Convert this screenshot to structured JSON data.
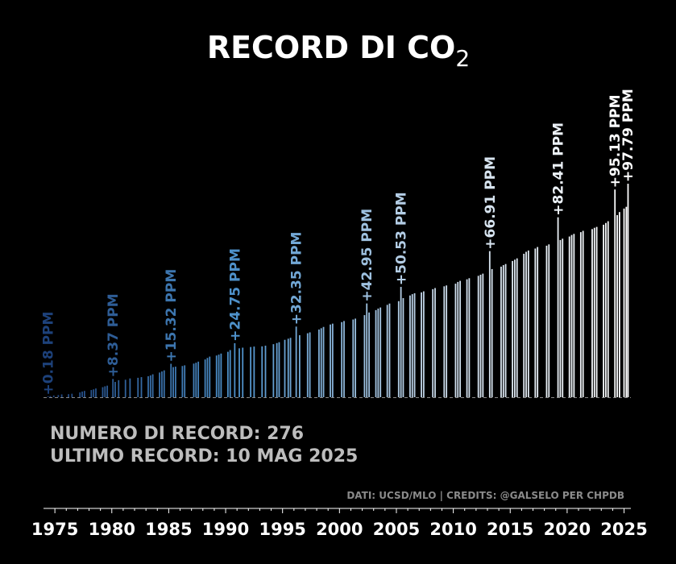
{
  "chart_data": {
    "type": "bar",
    "title": "RECORD DI CO",
    "title_subscript": "2",
    "xlabel": "",
    "ylabel": "",
    "x_ticks": [
      "1975",
      "1980",
      "1985",
      "1990",
      "1995",
      "2000",
      "2005",
      "2010",
      "2015",
      "2020",
      "2025"
    ],
    "xlim": [
      1974,
      2025.6
    ],
    "ylim": [
      0,
      100
    ],
    "baseline_style": "dashed",
    "grid": false,
    "stats": {
      "count_line": "NUMERO DI RECORD: 276",
      "last_record_line": "ULTIMO RECORD: 10 MAG 2025"
    },
    "credits": "DATI: UCSD/MLO | CREDITS: @GALSELO PER CHPDB",
    "colors": {
      "background": "#000000",
      "early": "#1c3f78",
      "mid": "#4f93cc",
      "late": "#c8d9ea",
      "latest": "#ffffff",
      "stats_text": "#bdbdbd",
      "credits_text": "#8a8a8a"
    },
    "annotations": [
      {
        "x": 1974.4,
        "y": 0.18,
        "label": "+0.18 PPM"
      },
      {
        "x": 1980.1,
        "y": 8.37,
        "label": "+8.37 PPM"
      },
      {
        "x": 1985.2,
        "y": 15.32,
        "label": "+15.32 PPM"
      },
      {
        "x": 1990.8,
        "y": 24.75,
        "label": "+24.75 PPM"
      },
      {
        "x": 1996.2,
        "y": 32.35,
        "label": "+32.35 PPM"
      },
      {
        "x": 2002.4,
        "y": 42.95,
        "label": "+42.95 PPM"
      },
      {
        "x": 2005.4,
        "y": 50.53,
        "label": "+50.53 PPM"
      },
      {
        "x": 2013.2,
        "y": 66.91,
        "label": "+66.91 PPM"
      },
      {
        "x": 2019.2,
        "y": 82.41,
        "label": "+82.41 PPM"
      },
      {
        "x": 2024.2,
        "y": 95.13,
        "label": "+95.13 PPM"
      },
      {
        "x": 2025.3,
        "y": 97.79,
        "label": "+97.79 PPM"
      }
    ],
    "records": [
      [
        1974.4,
        0.18
      ],
      [
        1974.6,
        0.5
      ],
      [
        1974.9,
        0.8
      ],
      [
        1975.3,
        1.0
      ],
      [
        1975.6,
        1.3
      ],
      [
        1976.2,
        1.4
      ],
      [
        1976.5,
        1.6
      ],
      [
        1977.2,
        2.2
      ],
      [
        1977.4,
        2.6
      ],
      [
        1977.6,
        2.9
      ],
      [
        1978.2,
        3.3
      ],
      [
        1978.4,
        3.6
      ],
      [
        1978.6,
        4.0
      ],
      [
        1979.2,
        4.6
      ],
      [
        1979.4,
        5.0
      ],
      [
        1979.6,
        5.3
      ],
      [
        1980.1,
        8.37
      ],
      [
        1980.3,
        7.0
      ],
      [
        1980.6,
        7.8
      ],
      [
        1981.2,
        8.0
      ],
      [
        1981.6,
        8.6
      ],
      [
        1982.3,
        8.9
      ],
      [
        1982.6,
        9.2
      ],
      [
        1983.2,
        9.6
      ],
      [
        1983.4,
        10.0
      ],
      [
        1983.6,
        10.5
      ],
      [
        1984.2,
        11.3
      ],
      [
        1984.4,
        11.8
      ],
      [
        1984.6,
        12.3
      ],
      [
        1985.2,
        15.32
      ],
      [
        1985.4,
        13.8
      ],
      [
        1985.6,
        14.0
      ],
      [
        1986.2,
        14.3
      ],
      [
        1986.4,
        14.6
      ],
      [
        1987.2,
        15.4
      ],
      [
        1987.4,
        15.8
      ],
      [
        1987.6,
        16.3
      ],
      [
        1988.2,
        17.3
      ],
      [
        1988.4,
        18.0
      ],
      [
        1988.6,
        18.6
      ],
      [
        1989.2,
        19.1
      ],
      [
        1989.4,
        19.5
      ],
      [
        1989.6,
        20.0
      ],
      [
        1990.2,
        20.8
      ],
      [
        1990.4,
        21.6
      ],
      [
        1990.8,
        24.75
      ],
      [
        1991.2,
        22.4
      ],
      [
        1991.5,
        22.7
      ],
      [
        1992.2,
        23.0
      ],
      [
        1992.5,
        23.2
      ],
      [
        1993.2,
        23.3
      ],
      [
        1993.5,
        23.6
      ],
      [
        1994.2,
        24.3
      ],
      [
        1994.5,
        24.8
      ],
      [
        1994.7,
        25.2
      ],
      [
        1995.2,
        26.3
      ],
      [
        1995.5,
        26.8
      ],
      [
        1995.7,
        27.2
      ],
      [
        1996.2,
        32.35
      ],
      [
        1996.5,
        28.4
      ],
      [
        1997.2,
        29.3
      ],
      [
        1997.4,
        29.7
      ],
      [
        1998.2,
        31.0
      ],
      [
        1998.4,
        31.6
      ],
      [
        1998.6,
        32.2
      ],
      [
        1999.2,
        33.3
      ],
      [
        1999.4,
        33.7
      ],
      [
        2000.2,
        34.4
      ],
      [
        2000.4,
        34.9
      ],
      [
        2001.2,
        35.6
      ],
      [
        2001.4,
        36.0
      ],
      [
        2002.2,
        37.6
      ],
      [
        2002.4,
        42.95
      ],
      [
        2002.6,
        38.8
      ],
      [
        2003.2,
        39.9
      ],
      [
        2003.4,
        40.6
      ],
      [
        2003.6,
        41.1
      ],
      [
        2004.2,
        42.3
      ],
      [
        2004.4,
        42.9
      ],
      [
        2005.2,
        44.0
      ],
      [
        2005.4,
        50.53
      ],
      [
        2005.6,
        45.4
      ],
      [
        2006.2,
        46.6
      ],
      [
        2006.4,
        47.2
      ],
      [
        2006.6,
        47.6
      ],
      [
        2007.2,
        48.0
      ],
      [
        2007.4,
        48.5
      ],
      [
        2008.2,
        49.5
      ],
      [
        2008.4,
        50.0
      ],
      [
        2009.2,
        50.8
      ],
      [
        2009.4,
        51.2
      ],
      [
        2010.2,
        52.0
      ],
      [
        2010.4,
        52.8
      ],
      [
        2010.6,
        53.3
      ],
      [
        2011.2,
        54.0
      ],
      [
        2011.4,
        54.5
      ],
      [
        2012.2,
        55.6
      ],
      [
        2012.4,
        56.1
      ],
      [
        2012.6,
        56.6
      ],
      [
        2013.2,
        66.91
      ],
      [
        2013.4,
        58.7
      ],
      [
        2014.2,
        59.8
      ],
      [
        2014.4,
        60.5
      ],
      [
        2014.6,
        61.0
      ],
      [
        2015.2,
        62.4
      ],
      [
        2015.4,
        63.0
      ],
      [
        2015.6,
        63.6
      ],
      [
        2016.2,
        65.7
      ],
      [
        2016.4,
        66.6
      ],
      [
        2016.6,
        67.2
      ],
      [
        2017.2,
        68.1
      ],
      [
        2017.4,
        68.8
      ],
      [
        2018.2,
        69.4
      ],
      [
        2018.4,
        70.0
      ],
      [
        2019.2,
        82.41
      ],
      [
        2019.4,
        72.0
      ],
      [
        2019.6,
        72.6
      ],
      [
        2020.2,
        73.6
      ],
      [
        2020.4,
        74.3
      ],
      [
        2020.6,
        74.8
      ],
      [
        2021.2,
        75.6
      ],
      [
        2021.4,
        76.2
      ],
      [
        2022.2,
        77.0
      ],
      [
        2022.4,
        77.6
      ],
      [
        2022.6,
        78.0
      ],
      [
        2023.2,
        79.0
      ],
      [
        2023.4,
        79.8
      ],
      [
        2023.6,
        80.6
      ],
      [
        2024.2,
        95.13
      ],
      [
        2024.4,
        83.4
      ],
      [
        2024.6,
        84.8
      ],
      [
        2025.0,
        86.4
      ],
      [
        2025.2,
        87.2
      ],
      [
        2025.35,
        97.79
      ]
    ]
  }
}
